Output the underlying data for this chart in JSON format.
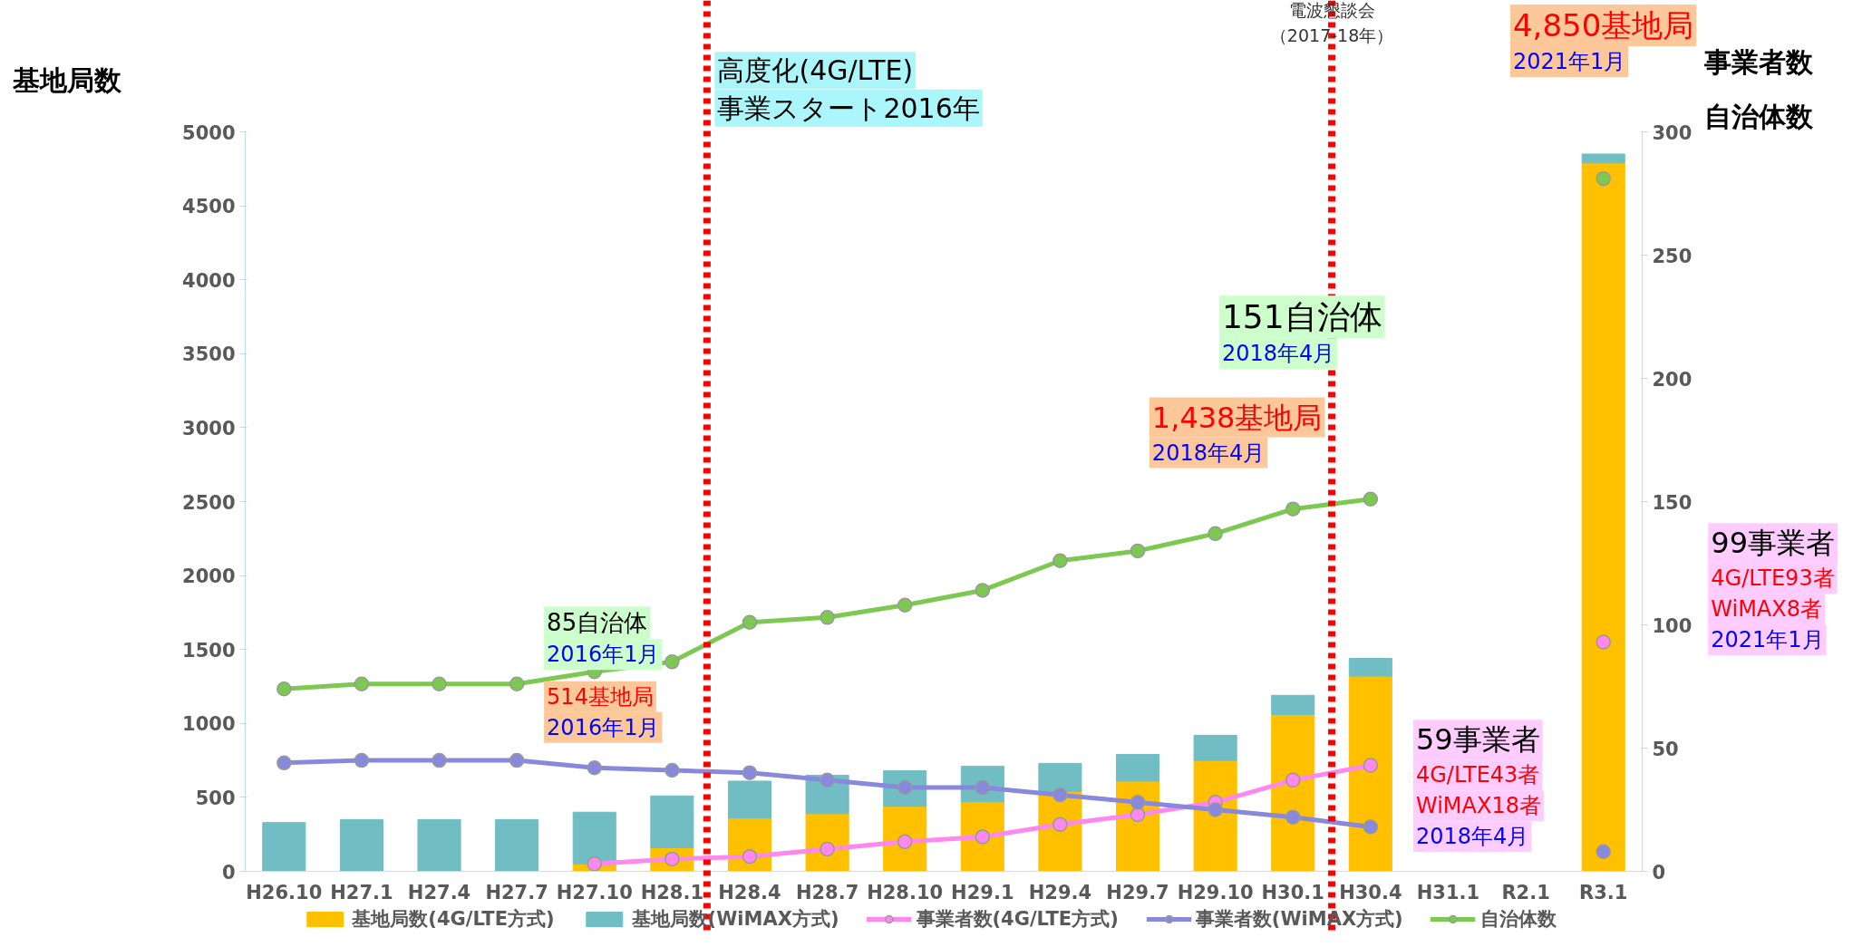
{
  "chart_data": {
    "type": "bar",
    "stacked": true,
    "ylabel": "基地局数",
    "y2label": "事業者数自治体数",
    "categories": [
      "H26.10",
      "H27.1",
      "H27.4",
      "H27.7",
      "H27.10",
      "H28.1",
      "H28.4",
      "H28.7",
      "H28.10",
      "H29.1",
      "H29.4",
      "H29.7",
      "H29.10",
      "H30.1",
      "H30.4",
      "H31.1",
      "R2.1",
      "R3.1"
    ],
    "series": [
      {
        "name": "基地局数(4G/LTE方式)",
        "color": "#ffc000",
        "values": [
          null,
          null,
          null,
          null,
          50,
          160,
          360,
          390,
          440,
          470,
          540,
          610,
          750,
          1060,
          1320,
          null,
          null,
          4790
        ]
      },
      {
        "name": "基地局数(WiMAX方式)",
        "color": "#70bdc4",
        "values": [
          330,
          350,
          350,
          350,
          350,
          350,
          250,
          260,
          240,
          240,
          190,
          180,
          170,
          130,
          120,
          null,
          null,
          60
        ]
      },
      {
        "name": "事業者数(4G/LTE方式)",
        "color": "#ff88ee",
        "type": "line",
        "axis": "y2",
        "values": [
          null,
          null,
          null,
          null,
          3,
          5,
          6,
          9,
          12,
          14,
          19,
          23,
          28,
          37,
          43,
          null,
          null,
          93
        ]
      },
      {
        "name": "事業者数(WiMAX方式)",
        "color": "#8888dd",
        "type": "line",
        "axis": "y2",
        "values": [
          44,
          45,
          45,
          45,
          42,
          41,
          40,
          37,
          34,
          34,
          31,
          28,
          25,
          22,
          18,
          null,
          null,
          8
        ]
      },
      {
        "name": "自治体数",
        "color": "#7cc850",
        "type": "line",
        "axis": "y2",
        "values": [
          74,
          76,
          76,
          76,
          81,
          85,
          101,
          103,
          108,
          114,
          126,
          130,
          137,
          147,
          151,
          null,
          null,
          281
        ]
      }
    ],
    "ylim": [
      0,
      5000
    ],
    "yticks": [
      0,
      500,
      1000,
      1500,
      2000,
      2500,
      3000,
      3500,
      4000,
      4500,
      5000
    ],
    "y2lim": [
      0,
      300
    ],
    "y2ticks": [
      0,
      50,
      100,
      150,
      200,
      250,
      300
    ],
    "marker": "circle",
    "legend": "bottom",
    "annotations": [
      "高度化(4G/LTE)\n事業スタート2016年",
      "電波懇談会（2017-18年）",
      "85自治体\n2016年1月",
      "514基地局\n2016年1月",
      "151自治体\n2018年4月",
      "1,438基地局\n2018年4月",
      "4,850基地局\n2021年1月",
      "59事業者\n4G/LTE43者\nWiMAX18者\n2018年4月",
      "99事業者\n4G/LTE93者\nWiMAX8者\n2021年1月"
    ]
  }
}
